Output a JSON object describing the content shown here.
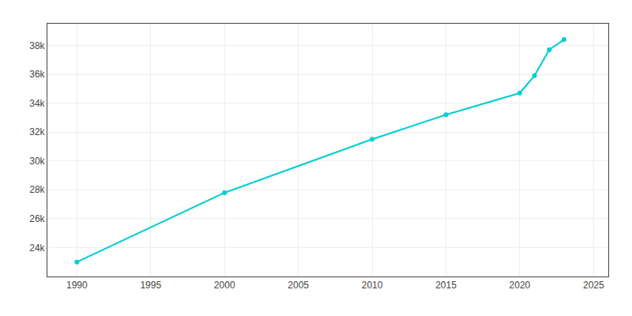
{
  "chart_data": {
    "type": "line",
    "x": [
      1990,
      2000,
      2010,
      2015,
      2020,
      2021,
      2022,
      2023
    ],
    "values": [
      23000,
      27800,
      31500,
      33200,
      34700,
      35900,
      37700,
      38400
    ],
    "color": "#00CED1",
    "marker": "circle",
    "xlim": [
      1988,
      2026
    ],
    "xticks": [
      1990,
      1995,
      2000,
      2005,
      2010,
      2015,
      2020,
      2025
    ],
    "ylim": [
      22000,
      39500
    ],
    "yticks": [
      {
        "value": 24000,
        "label": "24k"
      },
      {
        "value": 26000,
        "label": "26k"
      },
      {
        "value": 28000,
        "label": "28k"
      },
      {
        "value": 30000,
        "label": "30k"
      },
      {
        "value": 32000,
        "label": "32k"
      },
      {
        "value": 34000,
        "label": "34k"
      },
      {
        "value": 36000,
        "label": "36k"
      },
      {
        "value": 38000,
        "label": "38k"
      }
    ],
    "grid": true
  }
}
